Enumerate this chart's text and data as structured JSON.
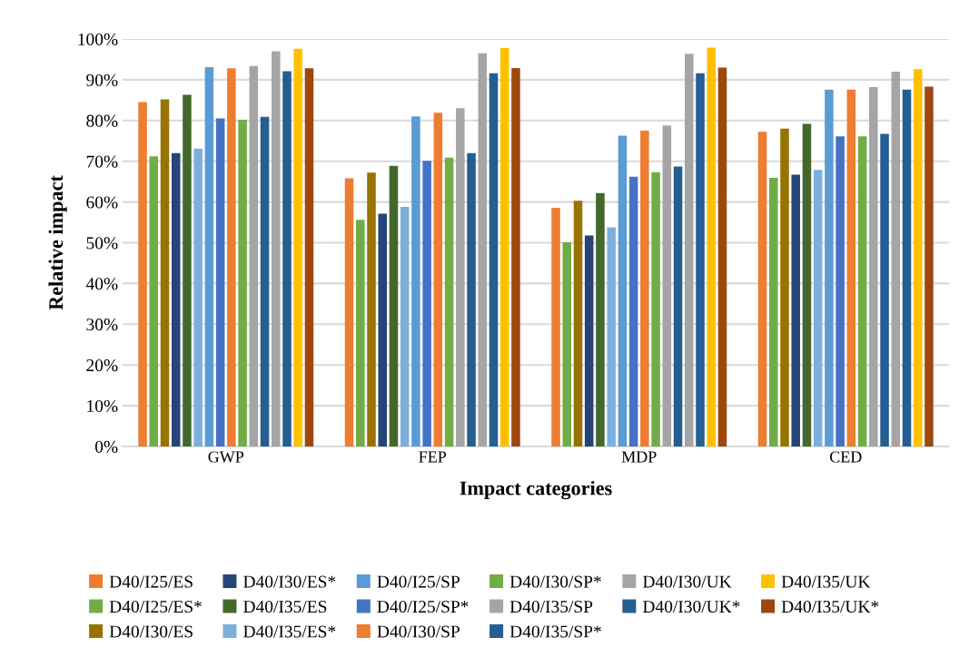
{
  "chart_data": {
    "type": "bar",
    "xlabel": "Impact categories",
    "ylabel": "Relative impact",
    "categories": [
      "GWP",
      "FEP",
      "MDP",
      "CED"
    ],
    "series": [
      {
        "name": "D40/I25/ES",
        "color": "#ed7d31",
        "values": [
          84.5,
          65.8,
          58.6,
          77.2
        ]
      },
      {
        "name": "D40/I25/ES*",
        "color": "#70ad47",
        "values": [
          71.2,
          55.6,
          50.1,
          65.9
        ]
      },
      {
        "name": "D40/I30/ES",
        "color": "#997300",
        "values": [
          85.2,
          67.2,
          60.3,
          78.0
        ]
      },
      {
        "name": "D40/I30/ES*",
        "color": "#264478",
        "values": [
          72.0,
          57.1,
          51.8,
          66.7
        ]
      },
      {
        "name": "D40/I35/ES",
        "color": "#43682b",
        "values": [
          86.3,
          68.9,
          62.2,
          79.2
        ]
      },
      {
        "name": "D40/I35/ES*",
        "color": "#7cafdd",
        "values": [
          73.1,
          58.8,
          53.8,
          67.9
        ]
      },
      {
        "name": "D40/I25/SP",
        "color": "#5b9bd5",
        "values": [
          93.1,
          81.0,
          76.3,
          87.6
        ]
      },
      {
        "name": "D40/I25/SP*",
        "color": "#4472c4",
        "values": [
          80.5,
          70.1,
          66.2,
          76.1
        ]
      },
      {
        "name": "D40/I30/SP",
        "color": "#ed7d31",
        "values": [
          92.8,
          81.9,
          77.5,
          87.6
        ]
      },
      {
        "name": "D40/I30/SP*",
        "color": "#70ad47",
        "values": [
          80.2,
          70.9,
          67.3,
          76.1
        ]
      },
      {
        "name": "D40/I35/SP",
        "color": "#a5a5a5",
        "values": [
          93.4,
          83.0,
          78.8,
          88.2
        ]
      },
      {
        "name": "D40/I35/SP*",
        "color": "#255e91",
        "values": [
          80.9,
          72.0,
          68.7,
          76.7
        ]
      },
      {
        "name": "D40/I30/UK",
        "color": "#a5a5a5",
        "values": [
          97.0,
          96.5,
          96.4,
          92.0
        ]
      },
      {
        "name": "D40/I30/UK*",
        "color": "#255e91",
        "values": [
          92.1,
          91.6,
          91.6,
          87.6
        ]
      },
      {
        "name": "D40/I35/UK",
        "color": "#ffc000",
        "values": [
          97.6,
          97.8,
          97.9,
          92.6
        ]
      },
      {
        "name": "D40/I35/UK*",
        "color": "#9e480e",
        "values": [
          92.8,
          92.9,
          93.0,
          88.3
        ]
      }
    ],
    "ylim": [
      0,
      100
    ],
    "yticks": [
      {
        "value": 0,
        "label": "0%"
      },
      {
        "value": 10,
        "label": "10%"
      },
      {
        "value": 20,
        "label": "20%"
      },
      {
        "value": 30,
        "label": "30%"
      },
      {
        "value": 40,
        "label": "40%"
      },
      {
        "value": 50,
        "label": "50%"
      },
      {
        "value": 60,
        "label": "60%"
      },
      {
        "value": 70,
        "label": "70%"
      },
      {
        "value": 80,
        "label": "80%"
      },
      {
        "value": 90,
        "label": "90%"
      },
      {
        "value": 100,
        "label": "100%"
      }
    ],
    "grid": "y",
    "legend": "bottom"
  }
}
